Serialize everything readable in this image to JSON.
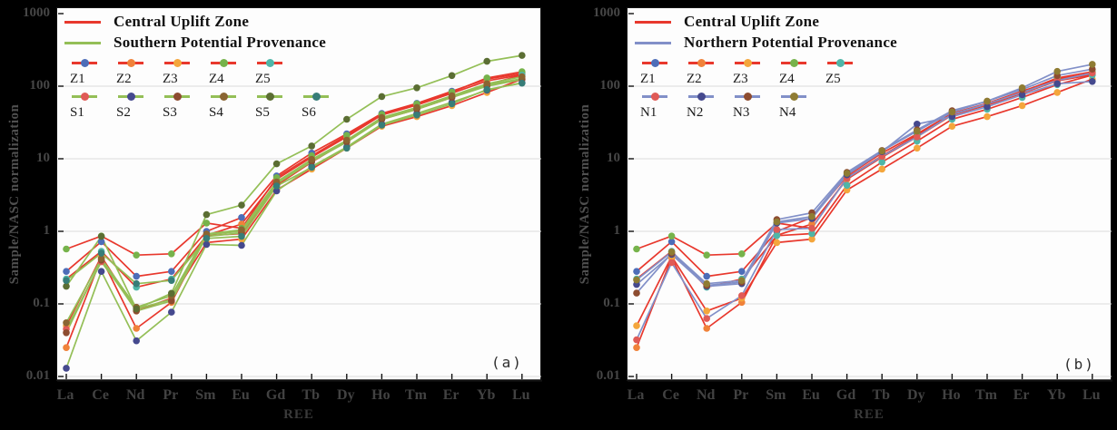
{
  "figure": {
    "background": "#000000",
    "y_axis_title": "Sample/NASC normalization",
    "x_axis_title": "REE",
    "y_tick_labels": [
      "1000",
      "100",
      "10",
      "1",
      "0.1",
      "0.01"
    ],
    "y_tick_values": [
      1000,
      100,
      10,
      1,
      0.1,
      0.01
    ],
    "grid_values": [
      100,
      10,
      1,
      0.1,
      0.01
    ],
    "grid_color": "#dcdcdc",
    "spine_color": "#111111"
  },
  "panels": {
    "a": {
      "label": "(a)"
    },
    "b": {
      "label": "(b)"
    }
  },
  "chart_data": [
    {
      "type": "line",
      "panel": "a",
      "y_scale": "log",
      "ylim": [
        0.01,
        1000
      ],
      "grid": "horizontal",
      "legend_position": "top-left",
      "xlabel": "REE",
      "ylabel": "Sample/NASC normalization",
      "categories": [
        "La",
        "Ce",
        "Nd",
        "Pr",
        "Sm",
        "Eu",
        "Gd",
        "Tb",
        "Dy",
        "Ho",
        "Tm",
        "Er",
        "Yb",
        "Lu"
      ],
      "legend_groups": [
        {
          "label": "Central Uplift Zone",
          "color": "#e8382d"
        },
        {
          "label": "Southern Potential Provenance",
          "color": "#94bf57"
        }
      ],
      "series": [
        {
          "name": "Z1",
          "group": "Z",
          "line_color": "#e8382d",
          "marker_color": "#4d6db8",
          "values": [
            0.28,
            0.72,
            0.24,
            0.28,
            1.0,
            1.55,
            5.8,
            12,
            22,
            42,
            58,
            85,
            125,
            150
          ]
        },
        {
          "name": "Z2",
          "group": "Z",
          "line_color": "#e8382d",
          "marker_color": "#f0823a",
          "values": [
            0.025,
            0.43,
            0.046,
            0.105,
            0.88,
            1.26,
            5.2,
            10.5,
            20,
            40,
            55,
            80,
            118,
            144
          ]
        },
        {
          "name": "Z3",
          "group": "Z",
          "line_color": "#e8382d",
          "marker_color": "#f4a63c",
          "values": [
            0.05,
            0.45,
            0.08,
            0.12,
            0.7,
            0.78,
            3.7,
            7.2,
            14,
            28,
            38,
            54,
            82,
            125
          ]
        },
        {
          "name": "Z4",
          "group": "Z",
          "line_color": "#e8382d",
          "marker_color": "#76b34b",
          "values": [
            0.57,
            0.86,
            0.47,
            0.49,
            1.3,
            1.1,
            5.5,
            11,
            21,
            41,
            57,
            83,
            130,
            158
          ]
        },
        {
          "name": "Z5",
          "group": "Z",
          "line_color": "#e8382d",
          "marker_color": "#4fb6a8",
          "values": [
            0.22,
            0.53,
            0.17,
            0.22,
            0.87,
            0.93,
            4.3,
            9.0,
            17.5,
            35,
            48,
            70,
            105,
            142
          ]
        },
        {
          "name": "S1",
          "group": "S",
          "line_color": "#94bf57",
          "marker_color": "#e05a56",
          "values": [
            0.045,
            0.38,
            0.085,
            0.115,
            0.9,
            1.0,
            4.6,
            9.6,
            17.5,
            36,
            50,
            72,
            104,
            127
          ]
        },
        {
          "name": "S2",
          "group": "S",
          "line_color": "#94bf57",
          "marker_color": "#45498e",
          "values": [
            0.013,
            0.28,
            0.031,
            0.077,
            0.66,
            0.64,
            3.6,
            7.8,
            14.5,
            30,
            42,
            60,
            88,
            112
          ]
        },
        {
          "name": "S3",
          "group": "S",
          "line_color": "#94bf57",
          "marker_color": "#8d4c30",
          "values": [
            0.04,
            0.4,
            0.08,
            0.11,
            0.85,
            0.95,
            4.5,
            9.2,
            17,
            35,
            48,
            70,
            100,
            124
          ]
        },
        {
          "name": "S4",
          "group": "S",
          "line_color": "#94bf57",
          "marker_color": "#8a6532",
          "values": [
            0.055,
            0.42,
            0.09,
            0.13,
            0.92,
            1.05,
            4.8,
            9.8,
            18,
            37,
            51,
            74,
            108,
            135
          ]
        },
        {
          "name": "S5",
          "group": "S",
          "line_color": "#94bf57",
          "marker_color": "#5b6e33",
          "values": [
            0.175,
            0.85,
            0.085,
            0.14,
            1.7,
            2.3,
            8.5,
            15,
            35,
            72,
            95,
            140,
            220,
            265
          ]
        },
        {
          "name": "S6",
          "group": "S",
          "line_color": "#94bf57",
          "marker_color": "#377d78",
          "values": [
            0.21,
            0.5,
            0.19,
            0.21,
            0.8,
            0.85,
            4.2,
            7.6,
            14,
            29,
            40,
            57,
            90,
            110
          ]
        }
      ]
    },
    {
      "type": "line",
      "panel": "b",
      "y_scale": "log",
      "ylim": [
        0.01,
        1000
      ],
      "grid": "horizontal",
      "legend_position": "top-left",
      "xlabel": "REE",
      "ylabel": "Sample/NASC normalization",
      "categories": [
        "La",
        "Ce",
        "Nd",
        "Pr",
        "Sm",
        "Eu",
        "Gd",
        "Tb",
        "Dy",
        "Ho",
        "Tm",
        "Er",
        "Yb",
        "Lu"
      ],
      "legend_groups": [
        {
          "label": "Central Uplift Zone",
          "color": "#e8382d"
        },
        {
          "label": "Northern Potential Provenance",
          "color": "#8290c8"
        }
      ],
      "series": [
        {
          "name": "Z1",
          "group": "Z",
          "line_color": "#e8382d",
          "marker_color": "#4d6db8",
          "values": [
            0.28,
            0.72,
            0.24,
            0.28,
            1.0,
            1.55,
            5.8,
            12,
            22,
            42,
            58,
            85,
            125,
            150
          ]
        },
        {
          "name": "Z2",
          "group": "Z",
          "line_color": "#e8382d",
          "marker_color": "#f0823a",
          "values": [
            0.025,
            0.43,
            0.046,
            0.105,
            0.88,
            1.26,
            5.2,
            10.5,
            20,
            40,
            55,
            80,
            118,
            144
          ]
        },
        {
          "name": "Z3",
          "group": "Z",
          "line_color": "#e8382d",
          "marker_color": "#f4a63c",
          "values": [
            0.05,
            0.45,
            0.08,
            0.12,
            0.7,
            0.78,
            3.7,
            7.2,
            14,
            28,
            38,
            54,
            82,
            125
          ]
        },
        {
          "name": "Z4",
          "group": "Z",
          "line_color": "#e8382d",
          "marker_color": "#76b34b",
          "values": [
            0.57,
            0.86,
            0.47,
            0.49,
            1.3,
            1.1,
            5.5,
            11,
            21,
            41,
            57,
            83,
            130,
            158
          ]
        },
        {
          "name": "Z5",
          "group": "Z",
          "line_color": "#e8382d",
          "marker_color": "#4fb6a8",
          "values": [
            0.22,
            0.53,
            0.17,
            0.22,
            0.87,
            0.93,
            4.3,
            9.0,
            17.5,
            35,
            48,
            70,
            105,
            142
          ]
        },
        {
          "name": "N1",
          "group": "N",
          "line_color": "#8290c8",
          "marker_color": "#e05a56",
          "values": [
            0.032,
            0.37,
            0.063,
            0.13,
            1.06,
            1.1,
            5.4,
            10.8,
            20,
            41,
            57,
            82,
            120,
            152
          ]
        },
        {
          "name": "N2",
          "group": "N",
          "line_color": "#8290c8",
          "marker_color": "#45498e",
          "values": [
            0.185,
            0.48,
            0.175,
            0.19,
            1.3,
            1.5,
            6.0,
            12.5,
            30,
            38,
            52,
            76,
            108,
            116
          ]
        },
        {
          "name": "N3",
          "group": "N",
          "line_color": "#8290c8",
          "marker_color": "#8d4c30",
          "values": [
            0.141,
            0.5,
            0.18,
            0.2,
            1.45,
            1.8,
            6.5,
            13,
            25,
            46,
            62,
            90,
            140,
            172
          ]
        },
        {
          "name": "N4",
          "group": "N",
          "line_color": "#8290c8",
          "marker_color": "#8f7c33",
          "values": [
            0.214,
            0.52,
            0.19,
            0.21,
            1.35,
            1.6,
            6.3,
            12.8,
            24,
            44,
            62,
            95,
            160,
            200
          ]
        }
      ]
    }
  ]
}
